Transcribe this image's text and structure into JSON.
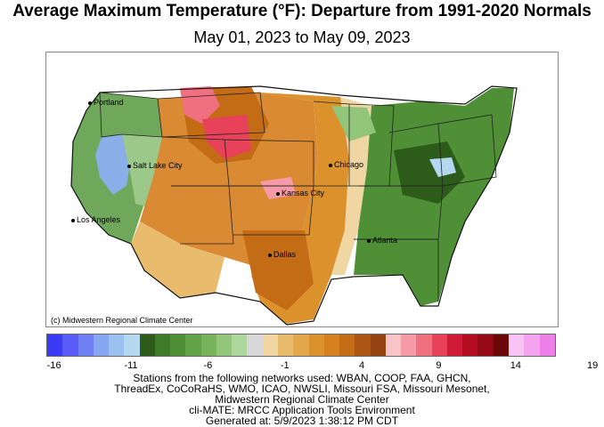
{
  "title": "Average Maximum Temperature (°F): Departure from 1991-2020 Normals",
  "subtitle": "May 01, 2023 to May 09, 2023",
  "credit": "(c) Midwestern Regional Climate Center",
  "cities": [
    {
      "name": "Portland"
    },
    {
      "name": "Salt Lake City"
    },
    {
      "name": "Los Angeles"
    },
    {
      "name": "Chicago"
    },
    {
      "name": "Kansas City"
    },
    {
      "name": "Dallas"
    },
    {
      "name": "Atlanta"
    }
  ],
  "legend": {
    "colors": [
      "#3b3bf6",
      "#5a5af6",
      "#6f7ff4",
      "#86a6f2",
      "#9cc0f0",
      "#b4d8f0",
      "#2d5b19",
      "#3e7a28",
      "#4f8f36",
      "#63a347",
      "#78b25a",
      "#92c47a",
      "#add79c",
      "#d7d7d7",
      "#efd6a3",
      "#e9bb6d",
      "#e2a64b",
      "#dc922c",
      "#d6801d",
      "#c46b16",
      "#ac5412",
      "#94420f",
      "#f8c4c8",
      "#f59aa6",
      "#f07080",
      "#e8425a",
      "#d01b36",
      "#b40d22",
      "#950a14",
      "#6c0707",
      "#f8c4f4",
      "#f4a3ee",
      "#ee7fe8"
    ],
    "tick_labels": [
      "-16",
      "-11",
      "-6",
      "-1",
      "4",
      "9",
      "14",
      "19"
    ]
  },
  "footer_lines": [
    "Stations from the following networks used: WBAN, COOP, FAA, GHCN,",
    "ThreadEx, CoCoRaHS, WMO, ICAO, NWSLI, Missouri FSA, Missouri Mesonet,",
    "Midwestern Regional Climate Center",
    "cli-MATE: MRCC Application Tools Environment",
    "Generated at: 5/9/2023 1:38:12 PM CDT"
  ]
}
